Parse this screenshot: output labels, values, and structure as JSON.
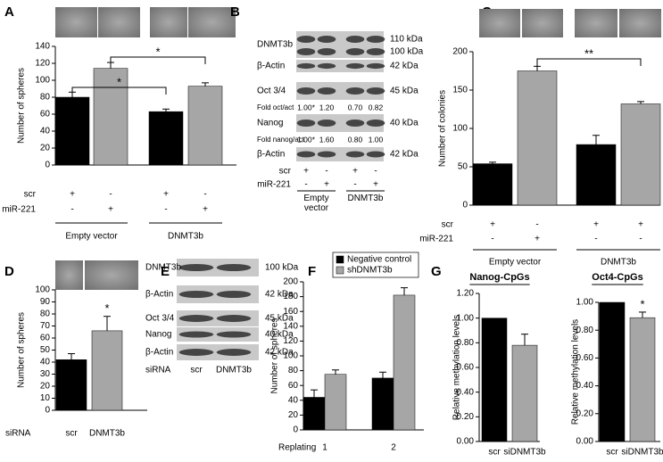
{
  "chart_data": [
    {
      "panel": "A",
      "type": "bar",
      "ylabel": "Number of spheres",
      "values": [
        80,
        114,
        63,
        93
      ],
      "errors": [
        6,
        7,
        3,
        4
      ],
      "colors": [
        "#000000",
        "#a6a6a6",
        "#000000",
        "#a6a6a6"
      ],
      "ylim": [
        0,
        140
      ],
      "yticks": [
        0,
        20,
        40,
        60,
        80,
        100,
        120,
        140
      ],
      "conditions": [
        {
          "label": "scr",
          "marks": [
            "+",
            "-",
            "+",
            "-"
          ]
        },
        {
          "label": "miR-221",
          "marks": [
            "-",
            "+",
            "-",
            "+"
          ]
        }
      ],
      "groups": [
        "Empty vector",
        "DNMT3b"
      ],
      "annotations": [
        "*",
        "*"
      ]
    },
    {
      "panel": "C",
      "type": "bar",
      "ylabel": "Number of colonies",
      "values": [
        54,
        175,
        79,
        132
      ],
      "errors": [
        2,
        6,
        12,
        3
      ],
      "colors": [
        "#000000",
        "#a6a6a6",
        "#000000",
        "#a6a6a6"
      ],
      "ylim": [
        0,
        200
      ],
      "yticks": [
        0,
        50,
        100,
        150,
        200
      ],
      "conditions": [
        {
          "label": "scr",
          "marks": [
            "+",
            "-",
            "+",
            "+"
          ]
        },
        {
          "label": "miR-221",
          "marks": [
            "-",
            "+",
            "-",
            "-"
          ]
        }
      ],
      "groups": [
        "Empty vector",
        "DNMT3b"
      ],
      "annotations": [
        "**"
      ]
    },
    {
      "panel": "D",
      "type": "bar",
      "ylabel": "Number of spheres",
      "xlabel": "siRNA",
      "categories": [
        "scr",
        "DNMT3b"
      ],
      "values": [
        42,
        66
      ],
      "errors": [
        5,
        12
      ],
      "colors": [
        "#000000",
        "#a6a6a6"
      ],
      "ylim": [
        0,
        100
      ],
      "yticks": [
        0,
        10,
        20,
        30,
        40,
        50,
        60,
        70,
        80,
        90,
        100
      ],
      "annotations": [
        "*"
      ]
    },
    {
      "panel": "F",
      "type": "bar",
      "ylabel": "Number of spheres",
      "xlabel": "Replating",
      "categories": [
        "1",
        "2"
      ],
      "series": [
        {
          "name": "Negative control",
          "color": "#000000",
          "values": [
            44,
            70
          ],
          "errors": [
            10,
            8
          ]
        },
        {
          "name": "shDNMT3b",
          "color": "#a6a6a6",
          "values": [
            75,
            182
          ],
          "errors": [
            6,
            10
          ]
        }
      ],
      "ylim": [
        0,
        200
      ],
      "yticks": [
        0,
        20,
        40,
        60,
        80,
        100,
        120,
        140,
        160,
        180,
        200
      ],
      "legend": "top"
    },
    {
      "panel": "G",
      "type": "bar",
      "title": "Nanog-CpGs",
      "ylabel": "Relative methylation levels",
      "categories": [
        "scr",
        "siDNMT3b"
      ],
      "values": [
        1.0,
        0.78
      ],
      "errors": [
        0,
        0.09
      ],
      "colors": [
        "#000000",
        "#a6a6a6"
      ],
      "ylim": [
        0,
        1.2
      ],
      "yticks": [
        {
          "value": 0,
          "label": "0.00"
        },
        {
          "value": 0.2,
          "label": "0.20"
        },
        {
          "value": 0.4,
          "label": "0.40"
        },
        {
          "value": 0.6,
          "label": "0.60"
        },
        {
          "value": 0.8,
          "label": "0.80"
        },
        {
          "value": 1.0,
          "label": "1.00"
        },
        {
          "value": 1.2,
          "label": "1.20"
        }
      ]
    },
    {
      "type": "bar",
      "title": "Oct4-CpGs",
      "ylabel": "Relative methylation levels",
      "categories": [
        "scr",
        "siDNMT3b"
      ],
      "values": [
        1.0,
        0.89
      ],
      "errors": [
        0,
        0.04
      ],
      "colors": [
        "#000000",
        "#a6a6a6"
      ],
      "ylim": [
        0,
        1.0
      ],
      "yticks": [
        {
          "value": 0,
          "label": "0.00"
        },
        {
          "value": 0.2,
          "label": "0.20"
        },
        {
          "value": 0.4,
          "label": "0.40"
        },
        {
          "value": 0.6,
          "label": "0.60"
        },
        {
          "value": 0.8,
          "label": "0.80"
        },
        {
          "value": 1.0,
          "label": "1.00"
        }
      ],
      "annotations": [
        "*"
      ]
    }
  ],
  "blots": [
    {
      "panel": "B",
      "rows": [
        {
          "label": "DNMT3b",
          "sizes": [
            "110 kDa",
            "100 kDa"
          ]
        },
        {
          "label": "β-Actin",
          "sizes": [
            "42 kDa"
          ]
        },
        {
          "label": "Oct 3/4",
          "sizes": [
            "45 kDa"
          ]
        },
        {
          "label": "Fold oct/act",
          "folds": [
            "1.00*",
            "1.20",
            "0.70",
            "0.82"
          ]
        },
        {
          "label": "Nanog",
          "sizes": [
            "40 kDa"
          ]
        },
        {
          "label": "Fold nanog/act",
          "folds": [
            "1.00*",
            "1.60",
            "0.80",
            "1.00"
          ]
        },
        {
          "label": "β-Actin",
          "sizes": [
            "42 kDa"
          ]
        }
      ],
      "conditions": [
        {
          "label": "scr",
          "marks": [
            "+",
            "-",
            "+",
            "-"
          ]
        },
        {
          "label": "miR-221",
          "marks": [
            "-",
            "+",
            "-",
            "+"
          ]
        }
      ],
      "groups": [
        "Empty vector",
        "DNMT3b"
      ]
    },
    {
      "panel": "E",
      "rows": [
        {
          "label": "DNMT3b",
          "sizes": [
            "100 kDa"
          ]
        },
        {
          "label": "β-Actin",
          "sizes": [
            "42 kDa"
          ]
        },
        {
          "label": "Oct 3/4",
          "sizes": [
            "45 kDa"
          ]
        },
        {
          "label": "Nanog",
          "sizes": [
            "40 kDa"
          ]
        },
        {
          "label": "β-Actin",
          "sizes": [
            "42 kDa"
          ]
        }
      ],
      "xlabel": "siRNA",
      "categories": [
        "scr",
        "DNMT3b"
      ]
    }
  ]
}
